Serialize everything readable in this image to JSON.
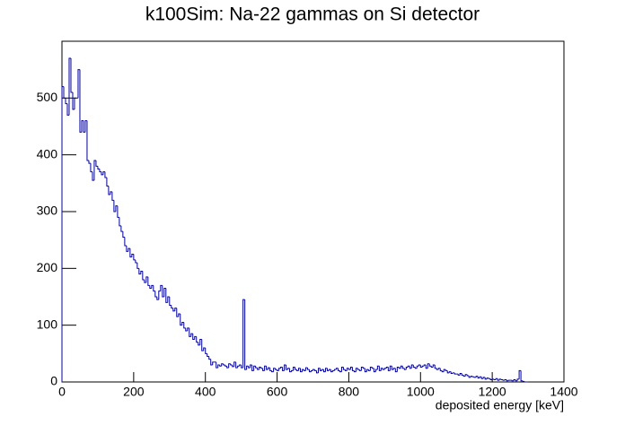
{
  "chart_data": {
    "type": "histogram",
    "title": "k100Sim: Na-22 gammas on Si detector",
    "xlabel": "deposited energy [keV]",
    "color": "#000099",
    "xlim": [
      0,
      1400
    ],
    "ylim": [
      0,
      600
    ],
    "xticks": [
      0,
      200,
      400,
      600,
      800,
      1000,
      1200,
      1400
    ],
    "yticks": [
      0,
      100,
      200,
      300,
      400,
      500
    ],
    "bins": [
      0,
      5,
      10,
      15,
      20,
      25,
      30,
      35,
      40,
      45,
      50,
      55,
      60,
      65,
      70,
      75,
      80,
      85,
      90,
      95,
      100,
      105,
      110,
      115,
      120,
      125,
      130,
      135,
      140,
      145,
      150,
      155,
      160,
      165,
      170,
      175,
      180,
      185,
      190,
      195,
      200,
      205,
      210,
      215,
      220,
      225,
      230,
      235,
      240,
      245,
      250,
      255,
      260,
      265,
      270,
      275,
      280,
      285,
      290,
      295,
      300,
      305,
      310,
      315,
      320,
      325,
      330,
      335,
      340,
      345,
      350,
      355,
      360,
      365,
      370,
      375,
      380,
      385,
      390,
      395,
      400,
      405,
      410,
      415,
      420,
      425,
      430,
      435,
      440,
      445,
      450,
      455,
      460,
      465,
      470,
      475,
      480,
      485,
      490,
      495,
      500,
      505,
      510,
      515,
      520,
      525,
      530,
      535,
      540,
      545,
      550,
      555,
      560,
      565,
      570,
      575,
      580,
      585,
      590,
      595,
      600,
      605,
      610,
      615,
      620,
      625,
      630,
      635,
      640,
      645,
      650,
      655,
      660,
      665,
      670,
      675,
      680,
      685,
      690,
      695,
      700,
      705,
      710,
      715,
      720,
      725,
      730,
      735,
      740,
      745,
      750,
      755,
      760,
      765,
      770,
      775,
      780,
      785,
      790,
      795,
      800,
      805,
      810,
      815,
      820,
      825,
      830,
      835,
      840,
      845,
      850,
      855,
      860,
      865,
      870,
      875,
      880,
      885,
      890,
      895,
      900,
      905,
      910,
      915,
      920,
      925,
      930,
      935,
      940,
      945,
      950,
      955,
      960,
      965,
      970,
      975,
      980,
      985,
      990,
      995,
      1000,
      1005,
      1010,
      1015,
      1020,
      1025,
      1030,
      1035,
      1040,
      1045,
      1050,
      1055,
      1060,
      1065,
      1070,
      1075,
      1080,
      1085,
      1090,
      1095,
      1100,
      1105,
      1110,
      1115,
      1120,
      1125,
      1130,
      1135,
      1140,
      1145,
      1150,
      1155,
      1160,
      1165,
      1170,
      1175,
      1180,
      1185,
      1190,
      1195,
      1200,
      1205,
      1210,
      1215,
      1220,
      1225,
      1230,
      1235,
      1240,
      1245,
      1250,
      1255,
      1260,
      1265,
      1270,
      1275,
      1280,
      1285,
      1290,
      1295,
      1300
    ],
    "counts": [
      520,
      500,
      490,
      470,
      570,
      510,
      480,
      500,
      500,
      550,
      440,
      460,
      440,
      460,
      390,
      385,
      370,
      355,
      390,
      380,
      375,
      370,
      365,
      370,
      360,
      345,
      330,
      335,
      320,
      300,
      310,
      290,
      275,
      265,
      255,
      240,
      230,
      235,
      220,
      225,
      215,
      210,
      200,
      190,
      195,
      180,
      175,
      185,
      170,
      165,
      170,
      160,
      150,
      145,
      160,
      170,
      150,
      165,
      140,
      150,
      135,
      130,
      125,
      130,
      115,
      120,
      100,
      105,
      95,
      90,
      95,
      80,
      85,
      75,
      80,
      70,
      65,
      75,
      55,
      60,
      50,
      45,
      40,
      30,
      35,
      35,
      25,
      30,
      28,
      32,
      30,
      28,
      25,
      32,
      30,
      27,
      35,
      25,
      28,
      30,
      25,
      145,
      22,
      28,
      25,
      30,
      20,
      28,
      25,
      22,
      26,
      24,
      20,
      28,
      22,
      25,
      20,
      18,
      24,
      22,
      20,
      24,
      26,
      20,
      30,
      22,
      24,
      18,
      20,
      26,
      22,
      20,
      24,
      18,
      22,
      20,
      25,
      22,
      18,
      20,
      22,
      20,
      16,
      24,
      20,
      22,
      18,
      24,
      20,
      22,
      18,
      20,
      22,
      24,
      20,
      18,
      26,
      22,
      20,
      24,
      22,
      26,
      20,
      18,
      24,
      22,
      20,
      26,
      24,
      18,
      22,
      20,
      26,
      24,
      18,
      22,
      28,
      20,
      24,
      22,
      24,
      26,
      20,
      28,
      22,
      24,
      18,
      26,
      24,
      28,
      24,
      22,
      26,
      28,
      24,
      30,
      26,
      24,
      28,
      30,
      26,
      28,
      30,
      24,
      32,
      28,
      26,
      30,
      24,
      22,
      24,
      20,
      18,
      22,
      20,
      16,
      18,
      15,
      16,
      14,
      14,
      12,
      15,
      12,
      10,
      13,
      11,
      8,
      10,
      9,
      8,
      10,
      7,
      9,
      6,
      8,
      5,
      7,
      6,
      4,
      5,
      4,
      6,
      3,
      5,
      4,
      3,
      4,
      2,
      3,
      3,
      2,
      4,
      2,
      5,
      20,
      2,
      1,
      0,
      0
    ]
  }
}
